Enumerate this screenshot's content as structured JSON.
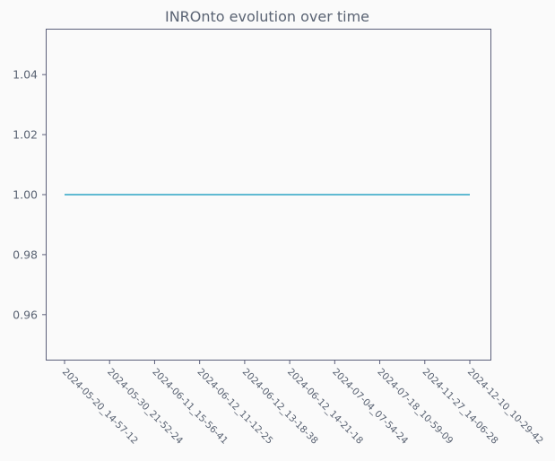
{
  "chart_data": {
    "type": "line",
    "title": "INROnto evolution over time",
    "xlabel": "",
    "ylabel": "",
    "categories": [
      "2024-05-20_14-57-12",
      "2024-05-30_21-52-24",
      "2024-06-11_15-56-41",
      "2024-06-12_11-12-25",
      "2024-06-12_13-18-38",
      "2024-06-12_14-21-18",
      "2024-07-04_07-54-24",
      "2024-07-18_10-59-09",
      "2024-11-27_14-06-28",
      "2024-12-10_10-29-42"
    ],
    "series": [
      {
        "values": [
          1.0,
          1.0,
          1.0,
          1.0,
          1.0,
          1.0,
          1.0,
          1.0,
          1.0,
          1.0
        ],
        "color": "#2ca4c4"
      }
    ],
    "ylim": [
      0.945,
      1.055
    ],
    "yticks": [
      0.96,
      0.98,
      1.0,
      1.02,
      1.04
    ],
    "ytick_labels": [
      "0.96",
      "0.98",
      "1.00",
      "1.02",
      "1.04"
    ],
    "grid": false,
    "legend": "none"
  }
}
